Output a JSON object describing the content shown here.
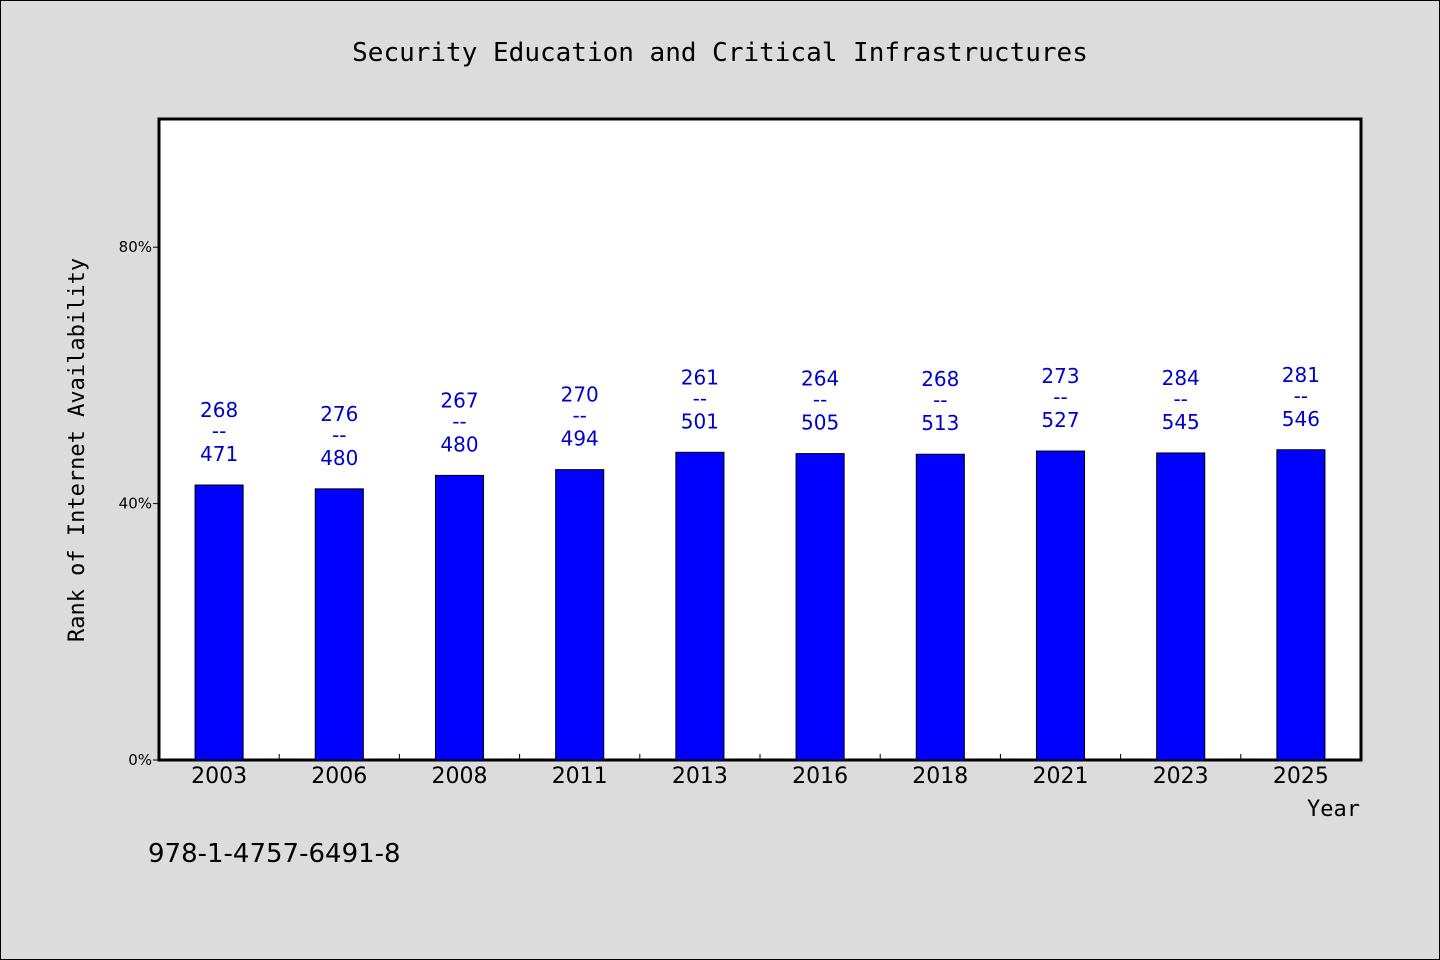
{
  "isbn": "978-1-4757-6491-8",
  "colors": {
    "background": "#dcdcdc",
    "plot_area": "#ffffff",
    "bar": "#0000ff",
    "label": "#0000cc"
  },
  "chart_data": {
    "type": "bar",
    "title": "Security Education and Critical Infrastructures",
    "xlabel": "Year",
    "ylabel": "Rank of Internet Availability",
    "categories": [
      "2003",
      "2006",
      "2008",
      "2011",
      "2013",
      "2016",
      "2018",
      "2021",
      "2023",
      "2025"
    ],
    "values": [
      0.429,
      0.423,
      0.444,
      0.453,
      0.48,
      0.478,
      0.477,
      0.482,
      0.479,
      0.484
    ],
    "labels_top": [
      "268",
      "276",
      "267",
      "270",
      "261",
      "264",
      "268",
      "273",
      "284",
      "281"
    ],
    "labels_sep": "--",
    "labels_bottom": [
      "471",
      "480",
      "480",
      "494",
      "501",
      "505",
      "513",
      "527",
      "545",
      "546"
    ],
    "ylim": [
      0,
      1.0
    ],
    "yticks": [
      0,
      0.4,
      0.8
    ],
    "ytick_labels": [
      "0%",
      "40%",
      "80%"
    ],
    "grid": false,
    "legend": "none"
  }
}
